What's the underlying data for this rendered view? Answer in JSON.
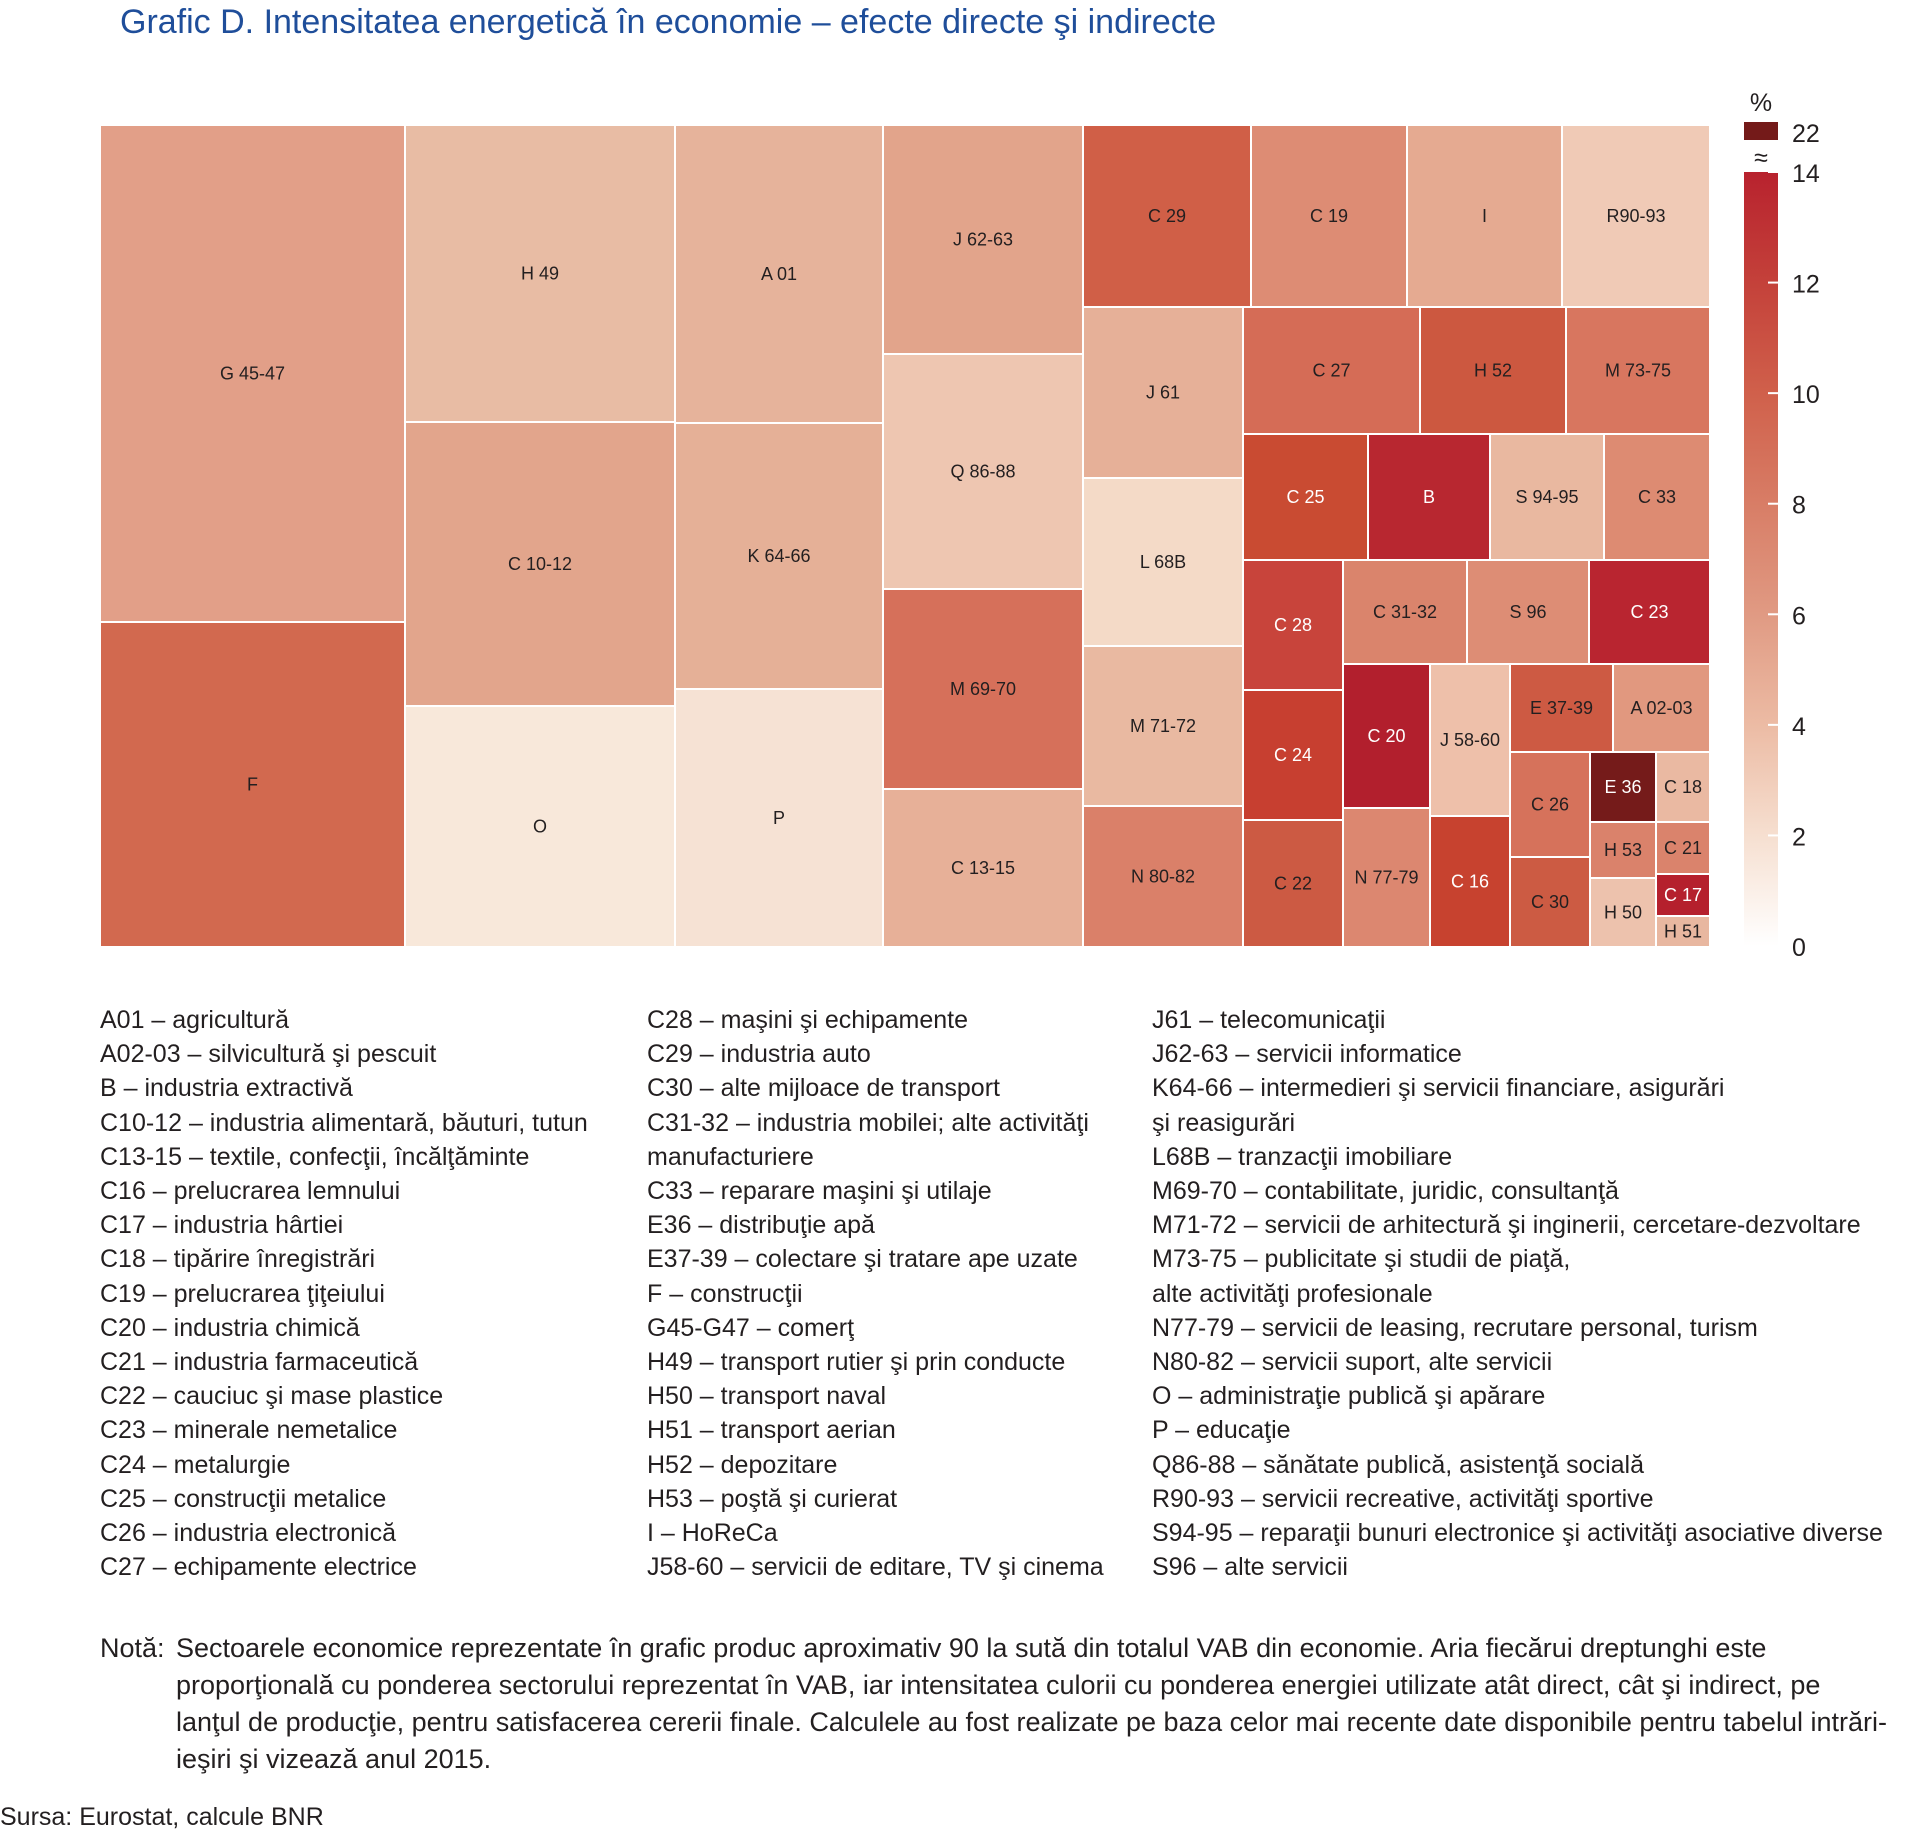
{
  "title": "Grafic D. Intensitatea energetică în economie – efecte directe şi indirecte",
  "chart_data": {
    "type": "treemap",
    "size_encodes": "ponderea sectorului în VAB",
    "color_encodes": "ponderea energiei utilizate direct şi indirect (%)",
    "color_scale": {
      "unit_label": "%",
      "min": 0,
      "max": 14,
      "break_symbol": "≈",
      "top_value": 22,
      "ticks": [
        0,
        2,
        4,
        6,
        8,
        10,
        12,
        14
      ],
      "colors": [
        "#ffffff",
        "#f6dfd0",
        "#ecbba4",
        "#e09a83",
        "#d87d66",
        "#d0604b",
        "#c4413a",
        "#b8222e"
      ],
      "top_color": "#741a19"
    },
    "cells": [
      {
        "label": "G 45-47",
        "value": 5.5,
        "color": "#e29f88"
      },
      {
        "label": "F",
        "value": 9.0,
        "color": "#d2694f"
      },
      {
        "label": "H 49",
        "value": 4.0,
        "color": "#e8bca4"
      },
      {
        "label": "C 10-12",
        "value": 5.3,
        "color": "#e2a58c"
      },
      {
        "label": "O",
        "value": 1.2,
        "color": "#f8e8da"
      },
      {
        "label": "A 01",
        "value": 4.3,
        "color": "#e6b39b"
      },
      {
        "label": "K 64-66",
        "value": 4.5,
        "color": "#e5b097"
      },
      {
        "label": "P",
        "value": 1.5,
        "color": "#f6e2d4"
      },
      {
        "label": "J 62-63",
        "value": 5.5,
        "color": "#e2a48b"
      },
      {
        "label": "Q 86-88",
        "value": 3.0,
        "color": "#eec6b1"
      },
      {
        "label": "M 69-70",
        "value": 8.5,
        "color": "#d6705a"
      },
      {
        "label": "C 13-15",
        "value": 4.8,
        "color": "#e7b098"
      },
      {
        "label": "C 29",
        "value": 9.5,
        "color": "#d05f47"
      },
      {
        "label": "C 19",
        "value": 7.0,
        "color": "#dd8c74"
      },
      {
        "label": "I",
        "value": 5.0,
        "color": "#e5aa91"
      },
      {
        "label": "R90-93",
        "value": 3.0,
        "color": "#f0cab6"
      },
      {
        "label": "J 61",
        "value": 4.8,
        "color": "#e6b098"
      },
      {
        "label": "L 68B",
        "value": 2.5,
        "color": "#f4dac7"
      },
      {
        "label": "M 71-72",
        "value": 4.5,
        "color": "#e9b9a1"
      },
      {
        "label": "N 80-82",
        "value": 7.5,
        "color": "#da8069"
      },
      {
        "label": "C 27",
        "value": 8.5,
        "color": "#d56c56"
      },
      {
        "label": "H 52",
        "value": 10.0,
        "color": "#cc5840"
      },
      {
        "label": "M 73-75",
        "value": 8.0,
        "color": "#d8765f"
      },
      {
        "label": "C 25",
        "value": 11.0,
        "color": "#c94b32"
      },
      {
        "label": "B",
        "value": 13.5,
        "color": "#b82730"
      },
      {
        "label": "S 94-95",
        "value": 4.5,
        "color": "#e9b8a0"
      },
      {
        "label": "C 33",
        "value": 7.0,
        "color": "#dd8b72"
      },
      {
        "label": "C 28",
        "value": 11.0,
        "color": "#c8443b"
      },
      {
        "label": "C 31-32",
        "value": 7.5,
        "color": "#da846c"
      },
      {
        "label": "S 96",
        "value": 7.0,
        "color": "#dd8d75"
      },
      {
        "label": "C 23",
        "value": 13.5,
        "color": "#b92530"
      },
      {
        "label": "C 24",
        "value": 11.5,
        "color": "#c73f30"
      },
      {
        "label": "C 20",
        "value": 14.0,
        "color": "#b21f2d"
      },
      {
        "label": "J 58-60",
        "value": 4.0,
        "color": "#eec0aa"
      },
      {
        "label": "E 37-39",
        "value": 10.0,
        "color": "#cd5a43"
      },
      {
        "label": "A 02-03",
        "value": 6.0,
        "color": "#e1987f"
      },
      {
        "label": "C 26",
        "value": 8.5,
        "color": "#d6725b"
      },
      {
        "label": "E 36",
        "value": 22,
        "color": "#751b1a"
      },
      {
        "label": "C 18",
        "value": 4.5,
        "color": "#eab9a2"
      },
      {
        "label": "C 22",
        "value": 10.0,
        "color": "#cc5a43"
      },
      {
        "label": "N 77-79",
        "value": 7.5,
        "color": "#dc8770"
      },
      {
        "label": "C 16",
        "value": 11.5,
        "color": "#c7422f"
      },
      {
        "label": "H 53",
        "value": 7.5,
        "color": "#da826b"
      },
      {
        "label": "C 21",
        "value": 7.5,
        "color": "#da836c"
      },
      {
        "label": "C 30",
        "value": 10.0,
        "color": "#cc5b43"
      },
      {
        "label": "H 50",
        "value": 4.0,
        "color": "#edc2ad"
      },
      {
        "label": "C 17",
        "value": 14.0,
        "color": "#b5202d"
      },
      {
        "label": "H 51",
        "value": 4.5,
        "color": "#e8b7a0"
      }
    ]
  },
  "legend": {
    "col1": [
      "A01 – agricultură",
      "A02-03 – silvicultură şi pescuit",
      "B – industria extractivă",
      "C10-12 – industria alimentară, băuturi, tutun",
      "C13-15 – textile, confecţii, încălţăminte",
      "C16 – prelucrarea lemnului",
      "C17 – industria hârtiei",
      "C18 – tipărire înregistrări",
      "C19 – prelucrarea ţiţeiului",
      "C20 – industria chimică",
      "C21 – industria farmaceutică",
      "C22 – cauciuc şi mase plastice",
      "C23 – minerale nemetalice",
      "C24 – metalurgie",
      "C25 – construcţii metalice",
      "C26 – industria electronică",
      "C27 – echipamente electrice"
    ],
    "col2": [
      "C28 – maşini şi echipamente",
      "C29 – industria auto",
      "C30 – alte mijloace de transport",
      "C31-32 – industria mobilei; alte activităţi",
      "manufacturiere",
      "C33 – reparare maşini şi utilaje",
      "E36 – distribuţie apă",
      "E37-39 – colectare şi tratare ape uzate",
      "F – construcţii",
      "G45-G47 – comerţ",
      "H49 – transport rutier şi prin conducte",
      "H50 – transport naval",
      "H51 – transport aerian",
      "H52 – depozitare",
      "H53 – poştă şi curierat",
      "I – HoReCa",
      "J58-60 – servicii de editare, TV şi cinema"
    ],
    "col3": [
      "J61 – telecomunicaţii",
      "J62-63 – servicii informatice",
      "K64-66 – intermedieri şi servicii financiare, asigurări",
      "şi reasigurări",
      "L68B – tranzacţii imobiliare",
      "M69-70 – contabilitate, juridic, consultanţă",
      "M71-72 – servicii de arhitectură şi inginerii, cercetare-dezvoltare",
      "M73-75 – publicitate şi studii de piaţă,",
      "alte activităţi profesionale",
      "N77-79 – servicii de leasing, recrutare personal, turism",
      "N80-82 – servicii suport, alte servicii",
      "O – administraţie publică şi apărare",
      "P – educaţie",
      "Q86-88 – sănătate publică, asistenţă socială",
      "R90-93 – servicii recreative, activităţi sportive",
      "S94-95 – reparaţii bunuri electronice şi activităţi asociative diverse",
      "S96 – alte servicii"
    ]
  },
  "note": {
    "label": "Notă:",
    "text": "Sectoarele economice reprezentate în grafic produc aproximativ 90 la sută din totalul VAB din economie. Aria fiecărui dreptunghi este proporţională cu ponderea sectorului reprezentat în VAB, iar intensitatea culorii cu ponderea energiei utilizate atât direct, cât şi indirect, pe lanţul de producţie, pentru satisfacerea cererii finale. Calculele au fost realizate pe baza celor mai recente date disponibile pentru tabelul intrări-ieşiri şi vizează anul 2015."
  },
  "source": "Sursa: Eurostat, calcule BNR"
}
